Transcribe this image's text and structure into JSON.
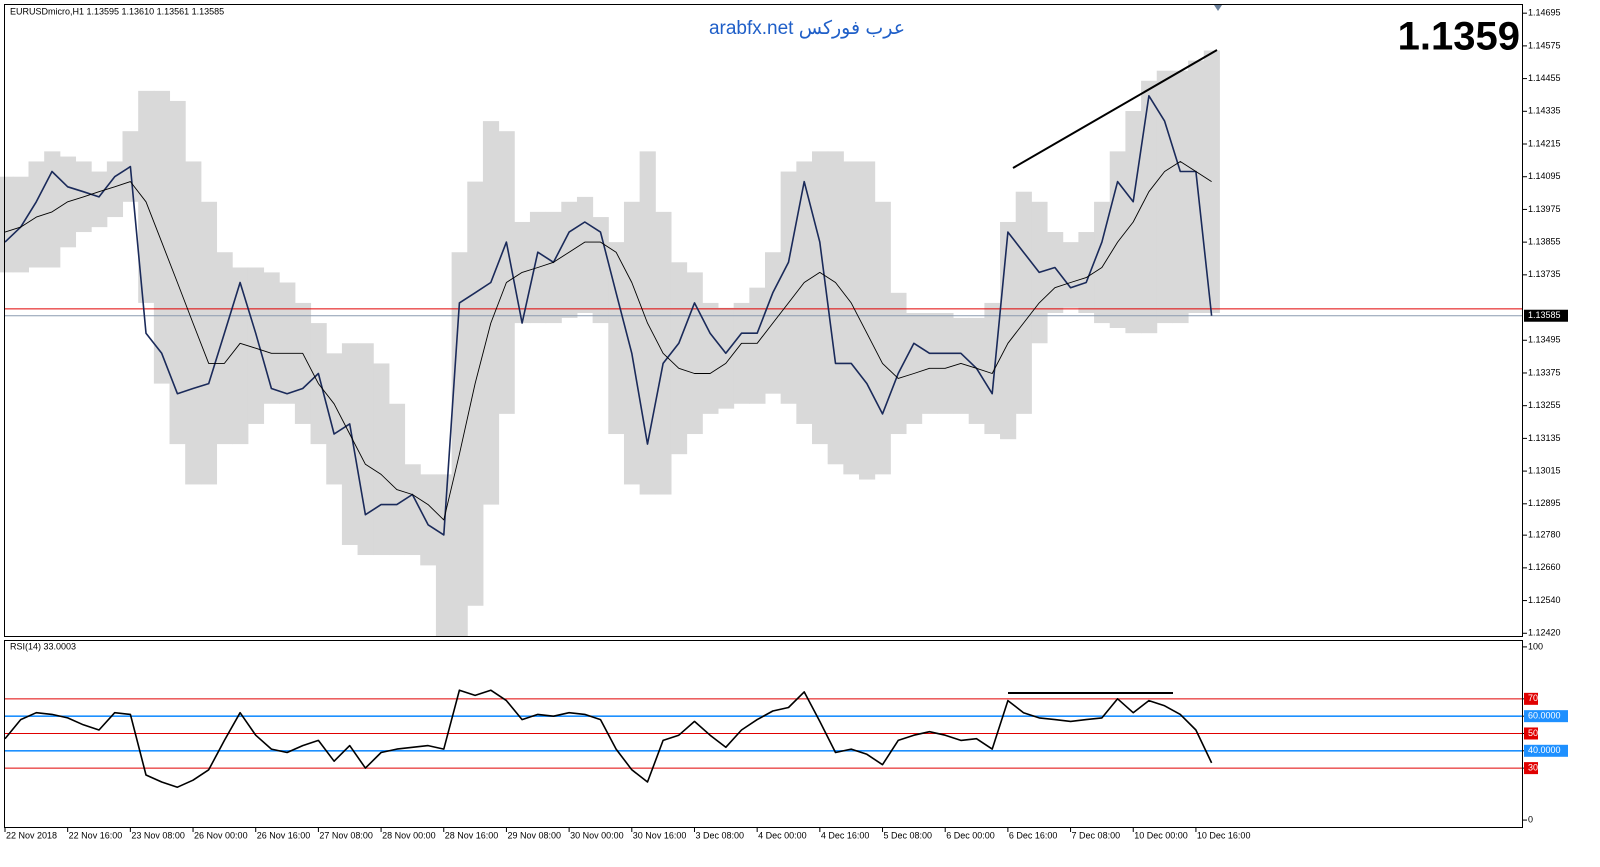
{
  "chart_data": [
    {
      "type": "line",
      "title": "EURUSDmicro,H1  1.13595 1.13610 1.13561 1.13585",
      "watermark": "arabfx.net عرب فوركس",
      "big_price": "1.1359",
      "categories": [
        "22 Nov 2018",
        null,
        null,
        null,
        "22 Nov 16:00",
        null,
        null,
        null,
        "23 Nov 08:00",
        null,
        null,
        null,
        "26 Nov 00:00",
        null,
        null,
        null,
        "26 Nov 16:00",
        null,
        null,
        null,
        "27 Nov 08:00",
        null,
        null,
        null,
        "28 Nov 00:00",
        null,
        null,
        null,
        "28 Nov 16:00",
        null,
        null,
        null,
        "29 Nov 08:00",
        null,
        null,
        null,
        "30 Nov 00:00",
        null,
        null,
        null,
        "30 Nov 16:00",
        null,
        null,
        null,
        "3 Dec 08:00",
        null,
        null,
        null,
        "4 Dec 00:00",
        null,
        null,
        null,
        "4 Dec 16:00",
        null,
        null,
        null,
        "5 Dec 08:00",
        null,
        null,
        null,
        "6 Dec 00:00",
        null,
        null,
        null,
        "6 Dec 16:00",
        null,
        null,
        null,
        "7 Dec 08:00",
        null,
        null,
        null,
        "10 Dec 00:00",
        null,
        null,
        null,
        "10 Dec 16:00",
        null
      ],
      "band": {
        "color": "#d9d9d9",
        "upper": [
          1.14095,
          1.14095,
          1.14151,
          1.14188,
          1.14169,
          1.14151,
          1.14114,
          1.14151,
          1.14262,
          1.1441,
          1.1441,
          1.14373,
          1.14151,
          1.14003,
          1.13818,
          1.13762,
          1.13762,
          1.13744,
          1.13707,
          1.13632,
          1.13558,
          1.13447,
          1.13484,
          1.13484,
          1.1341,
          1.13262,
          1.1304,
          1.13003,
          1.13003,
          1.13818,
          1.14077,
          1.14299,
          1.14262,
          1.13929,
          1.13966,
          1.13966,
          1.14003,
          1.14021,
          1.13947,
          1.13855,
          1.14003,
          1.14188,
          1.13966,
          1.13781,
          1.13744,
          1.13632,
          1.13614,
          1.13632,
          1.13688,
          1.13818,
          1.14114,
          1.14151,
          1.14188,
          1.14188,
          1.14151,
          1.14151,
          1.14003,
          1.13669,
          1.13595,
          1.13595,
          1.13595,
          1.13577,
          1.13577,
          1.13632,
          1.13929,
          1.1404,
          1.14003,
          1.13892,
          1.13855,
          1.13892,
          1.14003,
          1.14188,
          1.14336,
          1.14447,
          1.14484,
          1.14484,
          1.14521,
          1.14558
        ],
        "lower": [
          1.13744,
          1.13744,
          1.13762,
          1.13762,
          1.13836,
          1.13892,
          1.1391,
          1.13947,
          1.14003,
          1.13632,
          1.13336,
          1.13114,
          1.12966,
          1.12966,
          1.13114,
          1.13114,
          1.13188,
          1.13262,
          1.13262,
          1.13188,
          1.13114,
          1.12966,
          1.12744,
          1.12707,
          1.12707,
          1.12707,
          1.12707,
          1.12669,
          1.1241,
          1.1241,
          1.12521,
          1.12892,
          1.13225,
          1.13558,
          1.13558,
          1.13558,
          1.13577,
          1.13595,
          1.13558,
          1.13151,
          1.12966,
          1.12929,
          1.12929,
          1.13077,
          1.13151,
          1.13225,
          1.13244,
          1.13262,
          1.13262,
          1.13299,
          1.13262,
          1.13188,
          1.13114,
          1.1304,
          1.13003,
          1.12984,
          1.13003,
          1.13151,
          1.13188,
          1.13225,
          1.13225,
          1.13225,
          1.13188,
          1.13151,
          1.13132,
          1.13225,
          1.13484,
          1.13595,
          1.13614,
          1.13595,
          1.13558,
          1.1354,
          1.13521,
          1.13521,
          1.13558,
          1.13558,
          1.13595,
          1.13595
        ]
      },
      "series": [
        {
          "color": "#1a2a5a",
          "width": 1.6,
          "values": [
            1.13855,
            1.1391,
            1.14003,
            1.14114,
            1.14058,
            1.1404,
            1.14021,
            1.14095,
            1.14132,
            1.13521,
            1.13447,
            1.13299,
            1.13318,
            1.13336,
            1.13521,
            1.13707,
            1.13521,
            1.13318,
            1.13299,
            1.13318,
            1.13373,
            1.13151,
            1.13188,
            1.12855,
            1.12892,
            1.12892,
            1.12929,
            1.12818,
            1.12781,
            1.13632,
            1.13669,
            1.13707,
            1.13855,
            1.13558,
            1.13818,
            1.13781,
            1.13892,
            1.13929,
            1.13892,
            1.13669,
            1.13447,
            1.13114,
            1.1341,
            1.13484,
            1.13632,
            1.13521,
            1.13447,
            1.13521,
            1.13521,
            1.13669,
            1.13781,
            1.14077,
            1.13855,
            1.1341,
            1.1341,
            1.13336,
            1.13225,
            1.13373,
            1.13484,
            1.13447,
            1.13447,
            1.13447,
            1.13392,
            1.13299,
            1.13892,
            1.13818,
            1.13744,
            1.13762,
            1.13688,
            1.13707,
            1.13855,
            1.14077,
            1.14003,
            1.14392,
            1.14299,
            1.14114,
            1.14114,
            1.13585
          ]
        },
        {
          "color": "#000000",
          "width": 0.9,
          "values": [
            1.13892,
            1.1391,
            1.13947,
            1.13966,
            1.14003,
            1.14021,
            1.1404,
            1.14058,
            1.14077,
            1.14003,
            1.13855,
            1.13707,
            1.13558,
            1.1341,
            1.1341,
            1.13484,
            1.13466,
            1.13447,
            1.13447,
            1.13447,
            1.13336,
            1.13262,
            1.13151,
            1.1304,
            1.13003,
            1.12947,
            1.12929,
            1.12892,
            1.12836,
            1.13077,
            1.13336,
            1.13558,
            1.13707,
            1.13744,
            1.13762,
            1.13781,
            1.13818,
            1.13855,
            1.13855,
            1.13818,
            1.13707,
            1.13558,
            1.13447,
            1.13392,
            1.13373,
            1.13373,
            1.1341,
            1.13484,
            1.13484,
            1.13558,
            1.13632,
            1.13707,
            1.13744,
            1.13707,
            1.13632,
            1.13521,
            1.1341,
            1.13355,
            1.13373,
            1.13392,
            1.13392,
            1.1341,
            1.13392,
            1.13373,
            1.13484,
            1.13558,
            1.13632,
            1.13688,
            1.13707,
            1.13725,
            1.13762,
            1.13855,
            1.13929,
            1.1404,
            1.14114,
            1.14151,
            1.14114,
            1.14077
          ]
        }
      ],
      "bid": 1.13585,
      "bid_color": "#8c9bb0",
      "ask": 1.1361,
      "ask_color": "#e00000",
      "ylim": [
        1.1241,
        1.14725
      ],
      "yticks": [
        1.14695,
        1.14575,
        1.14455,
        1.14335,
        1.14215,
        1.14095,
        1.13975,
        1.13855,
        1.13735,
        1.13495,
        1.13375,
        1.13255,
        1.13135,
        1.13015,
        1.12895,
        {
          "value": 1.1278,
          "label": "1.12780"
        },
        {
          "value": 1.1266,
          "label": "1.12660"
        },
        {
          "value": 1.1254,
          "label": "1.12540"
        },
        {
          "value": 1.1242,
          "label": "1.12420"
        }
      ]
    },
    {
      "type": "line",
      "title": "RSI(14) 33.0003",
      "series": [
        {
          "color": "#000000",
          "width": 1.6,
          "values": [
            47,
            58,
            62,
            61,
            59,
            55,
            52,
            62,
            61,
            26,
            22,
            19,
            23,
            29,
            46,
            62,
            49,
            41,
            39,
            43,
            46,
            34,
            43,
            30,
            39,
            41,
            42,
            43,
            41,
            75,
            72,
            75,
            69,
            58,
            61,
            60,
            62,
            61,
            58,
            41,
            29,
            22,
            46,
            49,
            57,
            49,
            42,
            52,
            58,
            63,
            65,
            74,
            57,
            39,
            41,
            38,
            32,
            46,
            49,
            51,
            49,
            46,
            47,
            41,
            69,
            62,
            59,
            58,
            57,
            58,
            59,
            70,
            62,
            69,
            66,
            61,
            52,
            33.0003
          ]
        }
      ],
      "levels": [
        {
          "value": 70,
          "color": "#e00000"
        },
        {
          "value": 60,
          "color": "#1e90ff"
        },
        {
          "value": 50,
          "color": "#e00000"
        },
        {
          "value": 40,
          "color": "#1e90ff"
        },
        {
          "value": 30,
          "color": "#e00000"
        }
      ],
      "ylim": [
        -4,
        103.4
      ],
      "yticks": [
        100,
        70,
        {
          "value": 60,
          "label": "60.0000"
        },
        50,
        {
          "value": 40,
          "label": "40.0000"
        },
        30,
        0
      ]
    }
  ]
}
